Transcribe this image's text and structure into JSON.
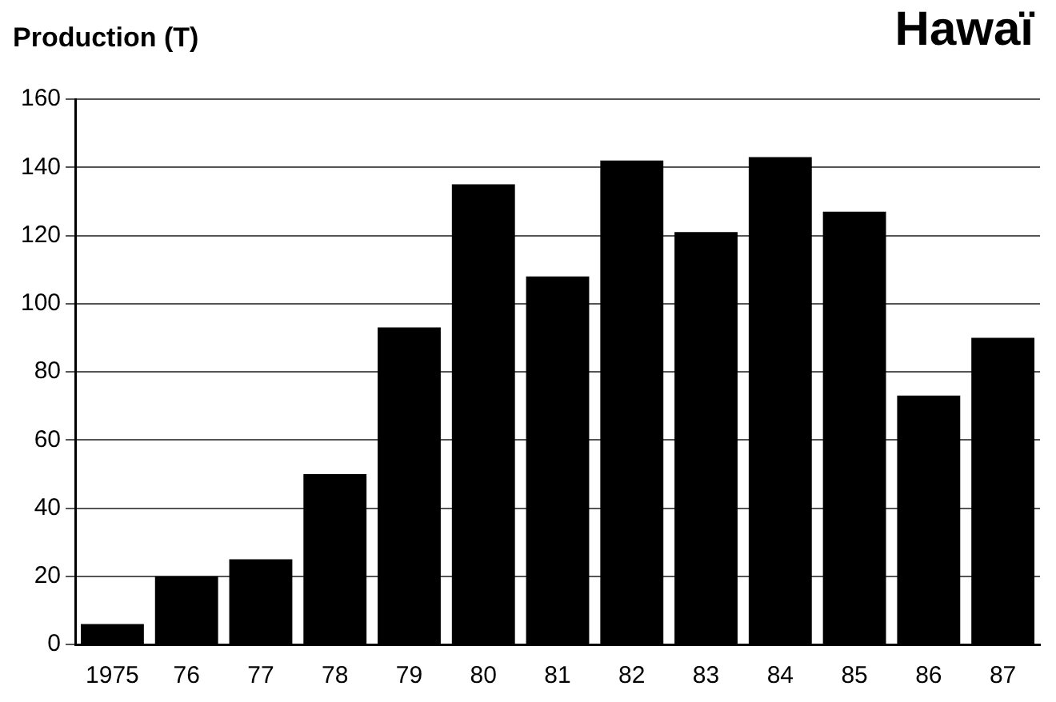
{
  "chart_data": {
    "type": "bar",
    "title": "Hawaï",
    "ylabel": "Production (T)",
    "categories": [
      "1975",
      "76",
      "77",
      "78",
      "79",
      "80",
      "81",
      "82",
      "83",
      "84",
      "85",
      "86",
      "87"
    ],
    "values": [
      6,
      20,
      25,
      50,
      93,
      135,
      108,
      142,
      121,
      143,
      127,
      73,
      90
    ],
    "color": "#000000",
    "ylim": [
      0,
      160
    ],
    "yticks": [
      0,
      20,
      40,
      60,
      80,
      100,
      120,
      140,
      160
    ],
    "grid": "y",
    "legend": false
  }
}
